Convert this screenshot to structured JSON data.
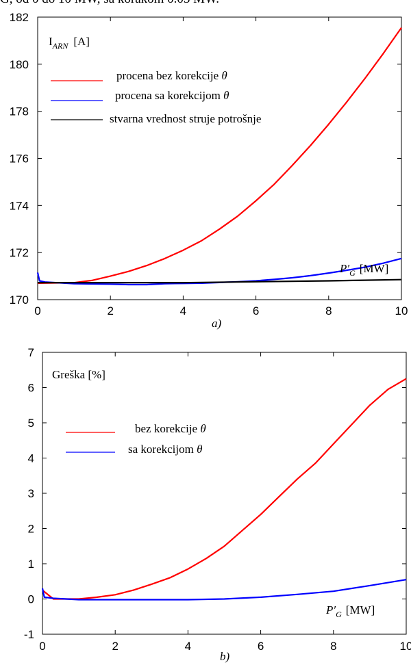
{
  "top_fragment": "G, od 0 do 10 MW, sa korakom 0.05 MW.",
  "chart_data": [
    {
      "type": "line",
      "ylabel_main": "I",
      "ylabel_sub": "ARN",
      "ylabel_unit": "[A]",
      "xlabel_main": "P′",
      "xlabel_sub": "G",
      "xlabel_unit": "[MW]",
      "panel_label": "a)",
      "xlim": [
        0,
        10
      ],
      "ylim": [
        170,
        182
      ],
      "xticks": [
        0,
        2,
        4,
        6,
        8,
        10
      ],
      "yticks": [
        170,
        172,
        174,
        176,
        178,
        180,
        182
      ],
      "legend_placement": "top-left",
      "series": [
        {
          "name": "procena bez korekcije",
          "legend_symbol": "θ",
          "color": "#ff0000",
          "x": [
            0,
            1,
            1.5,
            2,
            2.5,
            3,
            3.5,
            4,
            4.5,
            5,
            5.5,
            6,
            6.5,
            7,
            7.5,
            8,
            8.5,
            9,
            9.5,
            10
          ],
          "y": [
            170.7,
            170.72,
            170.82,
            171.0,
            171.2,
            171.45,
            171.75,
            172.1,
            172.5,
            173.0,
            173.55,
            174.2,
            174.9,
            175.7,
            176.55,
            177.45,
            178.4,
            179.4,
            180.45,
            181.55
          ]
        },
        {
          "name": "procena sa korekcijom",
          "legend_symbol": "θ",
          "color": "#0000ff",
          "x": [
            0,
            0.05,
            0.2,
            1,
            2,
            2.5,
            3,
            3.5,
            4,
            4.5,
            5,
            5.5,
            6,
            6.5,
            7,
            7.5,
            8,
            8.5,
            9,
            9.5,
            10
          ],
          "y": [
            171.15,
            170.8,
            170.75,
            170.68,
            170.66,
            170.64,
            170.64,
            170.68,
            170.69,
            170.7,
            170.73,
            170.76,
            170.8,
            170.86,
            170.93,
            171.02,
            171.13,
            171.25,
            171.38,
            171.55,
            171.75
          ]
        },
        {
          "name": "stvarna vrednost struje potrošnje",
          "legend_symbol": "",
          "color": "#000000",
          "x": [
            0,
            2,
            4,
            6,
            8,
            10
          ],
          "y": [
            170.72,
            170.72,
            170.72,
            170.76,
            170.8,
            170.85
          ]
        }
      ]
    },
    {
      "type": "line",
      "ylabel_main": "Greška [%]",
      "xlabel_main": "P′",
      "xlabel_sub": "G",
      "xlabel_unit": "[MW]",
      "panel_label": "b)",
      "xlim": [
        0,
        10
      ],
      "ylim": [
        -1,
        7
      ],
      "xticks": [
        0,
        2,
        4,
        6,
        8,
        10
      ],
      "yticks": [
        -1,
        0,
        1,
        2,
        3,
        4,
        5,
        6,
        7
      ],
      "legend_placement": "left",
      "series": [
        {
          "name": "bez korekcije",
          "legend_symbol": "θ",
          "color": "#ff0000",
          "x": [
            0,
            0.3,
            1,
            1.5,
            2,
            2.5,
            3,
            3.5,
            4,
            4.5,
            5,
            5.5,
            6,
            6.5,
            7,
            7.5,
            8,
            8.5,
            9,
            9.5,
            10
          ],
          "y": [
            0.25,
            0.0,
            0.0,
            0.05,
            0.12,
            0.25,
            0.42,
            0.6,
            0.85,
            1.15,
            1.5,
            1.95,
            2.4,
            2.9,
            3.4,
            3.85,
            4.4,
            4.95,
            5.5,
            5.95,
            6.25
          ]
        },
        {
          "name": "sa korekcijom",
          "legend_symbol": "θ",
          "color": "#0000ff",
          "x": [
            0,
            0.05,
            0.3,
            1,
            2,
            3,
            4,
            5,
            6,
            7,
            8,
            9,
            10
          ],
          "y": [
            0.3,
            0.05,
            0.02,
            -0.02,
            -0.02,
            -0.02,
            -0.02,
            0.0,
            0.05,
            0.13,
            0.22,
            0.38,
            0.55
          ]
        }
      ]
    }
  ]
}
